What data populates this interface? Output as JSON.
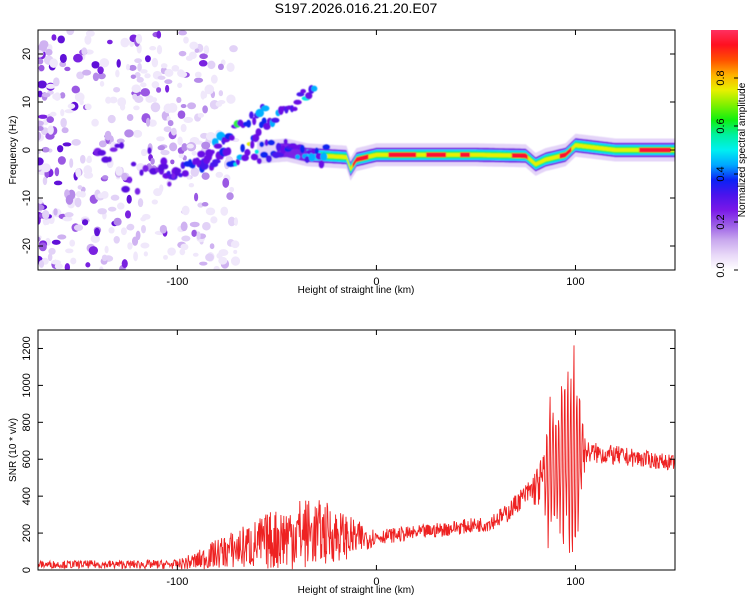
{
  "title": "S197.2026.016.21.20.E07",
  "chart_data": [
    {
      "type": "heatmap",
      "name": "spectrogram",
      "xlabel": "Height of straight line (km)",
      "ylabel": "Frequency (Hz)",
      "xlim": [
        -170,
        150
      ],
      "ylim": [
        -25,
        25
      ],
      "xticks": [
        -100,
        0,
        100
      ],
      "yticks": [
        -20,
        -10,
        0,
        10,
        20
      ],
      "colorbar": {
        "label": "Normalized spectral amplitude",
        "range": [
          0,
          1
        ],
        "ticks": [
          0.0,
          0.2,
          0.4,
          0.6,
          0.8
        ],
        "colors": [
          "#ffffff",
          "#e8d8f8",
          "#c9a8ee",
          "#9a5ce6",
          "#7a18e8",
          "#4a14ec",
          "#0a22f6",
          "#00a8ff",
          "#00f0f0",
          "#00f0a0",
          "#10f010",
          "#80f000",
          "#e8f000",
          "#ffb000",
          "#ff5000",
          "#ff1020",
          "#ff3060"
        ]
      },
      "centerline": [
        [
          -105,
          -4
        ],
        [
          -90,
          -3
        ],
        [
          -80,
          -2
        ],
        [
          -70,
          -1
        ],
        [
          -60,
          -0.5
        ],
        [
          -45,
          0
        ],
        [
          -35,
          -1
        ],
        [
          -15,
          -1.5
        ],
        [
          -13,
          -4
        ],
        [
          -10,
          -2
        ],
        [
          0,
          -1
        ],
        [
          50,
          -1
        ],
        [
          75,
          -1.2
        ],
        [
          80,
          -3
        ],
        [
          85,
          -2
        ],
        [
          95,
          -1
        ],
        [
          100,
          1
        ],
        [
          120,
          0
        ],
        [
          150,
          0
        ]
      ],
      "hot_segments": [
        [
          -12,
          -4
        ],
        [
          6,
          20
        ],
        [
          25,
          35
        ],
        [
          42,
          47
        ],
        [
          68,
          76
        ],
        [
          92,
          98
        ],
        [
          132,
          148
        ]
      ],
      "branches": [
        [
          [
            -88,
            -2
          ],
          [
            -75,
            3
          ],
          [
            -65,
            6
          ],
          [
            -55,
            9
          ]
        ],
        [
          [
            -62,
            3
          ],
          [
            -50,
            7
          ],
          [
            -40,
            10
          ],
          [
            -30,
            14
          ]
        ]
      ],
      "noise_region": [
        -170,
        -95
      ],
      "blob_count": 420
    },
    {
      "type": "line",
      "name": "snr",
      "xlabel": "Height of straight line (km)",
      "ylabel": "SNR (10 * v/v)",
      "xlim": [
        -170,
        150
      ],
      "ylim": [
        0,
        1300
      ],
      "xticks": [
        -100,
        0,
        100
      ],
      "yticks": [
        0,
        200,
        400,
        600,
        800,
        1000,
        1200
      ],
      "color": "#ee2222",
      "envelope": [
        [
          -170,
          30
        ],
        [
          -100,
          30
        ],
        [
          -90,
          50
        ],
        [
          -80,
          90
        ],
        [
          -60,
          140
        ],
        [
          -40,
          200
        ],
        [
          -25,
          200
        ],
        [
          -10,
          170
        ],
        [
          0,
          180
        ],
        [
          20,
          200
        ],
        [
          40,
          230
        ],
        [
          55,
          250
        ],
        [
          65,
          300
        ],
        [
          72,
          380
        ],
        [
          80,
          450
        ],
        [
          86,
          510
        ],
        [
          90,
          560
        ],
        [
          95,
          600
        ],
        [
          100,
          610
        ],
        [
          105,
          640
        ],
        [
          120,
          620
        ],
        [
          150,
          580
        ]
      ],
      "noise_amplitude": [
        [
          -170,
          20
        ],
        [
          -100,
          25
        ],
        [
          -80,
          80
        ],
        [
          -40,
          200
        ],
        [
          -25,
          170
        ],
        [
          -10,
          100
        ],
        [
          0,
          40
        ],
        [
          50,
          40
        ],
        [
          75,
          60
        ],
        [
          84,
          150
        ],
        [
          87,
          400
        ],
        [
          92,
          350
        ],
        [
          97,
          600
        ],
        [
          102,
          400
        ],
        [
          105,
          60
        ],
        [
          150,
          40
        ]
      ]
    }
  ]
}
